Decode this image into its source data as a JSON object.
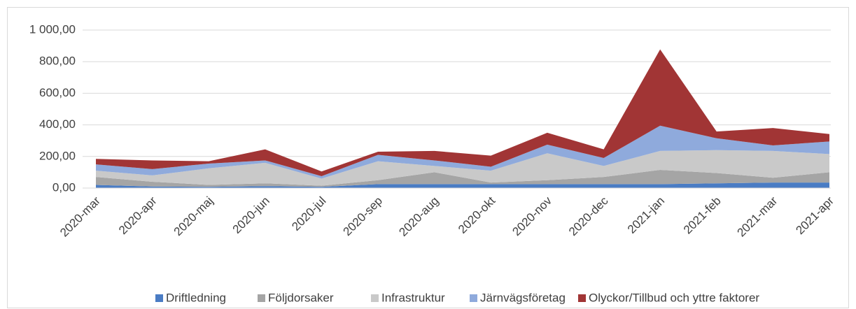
{
  "chart_data": {
    "type": "stacked_area",
    "categories": [
      "2020-mar",
      "2020-apr",
      "2020-maj",
      "2020-jun",
      "2020-jul",
      "2020-sep",
      "2020-aug",
      "2020-okt",
      "2020-nov",
      "2020-dec",
      "2021-jan",
      "2021-feb",
      "2021-mar",
      "2021-apr"
    ],
    "series": [
      {
        "name": "Driftledning",
        "color": "#4a7cc4",
        "values": [
          20,
          10,
          8,
          12,
          8,
          25,
          25,
          25,
          25,
          25,
          25,
          30,
          35,
          35
        ]
      },
      {
        "name": "Följdorsaker",
        "color": "#a5a5a5",
        "values": [
          50,
          30,
          12,
          18,
          7,
          25,
          75,
          10,
          25,
          45,
          90,
          65,
          30,
          65
        ]
      },
      {
        "name": "Infrastruktur",
        "color": "#c9c9c9",
        "values": [
          40,
          40,
          105,
          130,
          45,
          120,
          40,
          75,
          170,
          70,
          120,
          145,
          170,
          115
        ]
      },
      {
        "name": "Järnvägsföretag",
        "color": "#8faadc",
        "values": [
          40,
          40,
          30,
          15,
          15,
          40,
          35,
          25,
          55,
          50,
          160,
          75,
          35,
          80
        ]
      },
      {
        "name": "Olyckor/Tillbud och yttre faktorer",
        "color": "#a13535",
        "values": [
          35,
          55,
          15,
          70,
          30,
          20,
          60,
          70,
          75,
          55,
          483,
          43,
          110,
          47
        ]
      }
    ],
    "ylim": [
      0,
      1000
    ],
    "yticks": [
      {
        "value": 0,
        "label": "0,00"
      },
      {
        "value": 200,
        "label": "200,00"
      },
      {
        "value": 400,
        "label": "400,00"
      },
      {
        "value": 600,
        "label": "600,00"
      },
      {
        "value": 800,
        "label": "800,00"
      },
      {
        "value": 1000,
        "label": "1 000,00"
      }
    ],
    "grid": true,
    "legend": "bottom"
  }
}
